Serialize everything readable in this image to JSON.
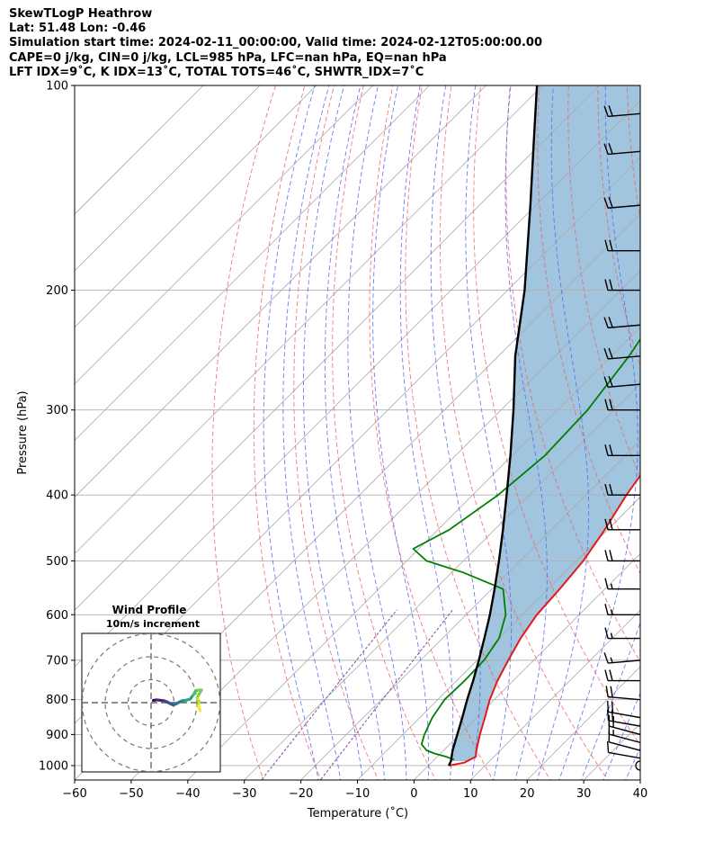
{
  "header": {
    "lines": [
      "SkewTLogP Heathrow",
      "Lat: 51.48   Lon: -0.46",
      "Simulation start time: 2024-02-11_00:00:00, Valid time: 2024-02-12T05:00:00.00",
      "CAPE=0 j/kg, CIN=0 j/kg, LCL=985 hPa, LFC=nan hPa, EQ=nan hPa",
      "LFT IDX=9˚C, K IDX=13˚C, TOTAL TOTS=46˚C, SHWTR_IDX=7˚C"
    ]
  },
  "chart_data": [
    {
      "type": "line",
      "chart_kind": "skew-T log-P",
      "xlabel": "Temperature (˚C)",
      "ylabel": "Pressure (hPa)",
      "xlim": [
        -60,
        40
      ],
      "ylim": [
        1050,
        100
      ],
      "y_scale": "log",
      "x_ticks": [
        -60,
        -50,
        -40,
        -30,
        -20,
        -10,
        0,
        10,
        20,
        30,
        40
      ],
      "y_ticks": [
        100,
        200,
        300,
        400,
        500,
        600,
        700,
        800,
        900,
        1000
      ],
      "grid": true,
      "skew_degrees": 45,
      "colors": {
        "temperature": "#e41a1c",
        "dewpoint": "#008000",
        "parcel": "#000000",
        "shading": "#a1c5df",
        "dry_adiabats": "#f06262",
        "moist_adiabats": "#5566ee",
        "mixing_ratio": "#8844aa",
        "isotherms": "#aaaaaa",
        "barbs": "#000000"
      },
      "series": [
        {
          "key": "temperature",
          "points": [
            [
              1000,
              3.6
            ],
            [
              990,
              5.8
            ],
            [
              970,
              6.8
            ],
            [
              950,
              5.8
            ],
            [
              900,
              3.6
            ],
            [
              850,
              1.5
            ],
            [
              800,
              -0.8
            ],
            [
              750,
              -2.8
            ],
            [
              700,
              -4.5
            ],
            [
              650,
              -6.2
            ],
            [
              600,
              -7.5
            ],
            [
              550,
              -8.0
            ],
            [
              500,
              -8.8
            ],
            [
              450,
              -10.5
            ],
            [
              400,
              -12.8
            ],
            [
              350,
              -14.8
            ],
            [
              320,
              -15.0
            ],
            [
              300,
              -14.2
            ],
            [
              270,
              -12.4
            ],
            [
              250,
              -10.6
            ],
            [
              230,
              -8.1
            ],
            [
              200,
              -6.3
            ],
            [
              180,
              -6.4
            ],
            [
              150,
              -6.8
            ],
            [
              130,
              -7.3
            ],
            [
              110,
              -8.0
            ],
            [
              100,
              -8.4
            ]
          ]
        },
        {
          "key": "dewpoint",
          "points": [
            [
              980,
              3.5
            ],
            [
              970,
              1.5
            ],
            [
              960,
              -1.0
            ],
            [
              950,
              -3.0
            ],
            [
              930,
              -5.0
            ],
            [
              900,
              -6.2
            ],
            [
              850,
              -7.8
            ],
            [
              800,
              -8.8
            ],
            [
              750,
              -8.6
            ],
            [
              700,
              -8.8
            ],
            [
              650,
              -10.0
            ],
            [
              600,
              -13.0
            ],
            [
              550,
              -18.0
            ],
            [
              520,
              -28.0
            ],
            [
              500,
              -36.5
            ],
            [
              480,
              -41.0
            ],
            [
              450,
              -38.0
            ],
            [
              400,
              -35.5
            ],
            [
              350,
              -34.2
            ],
            [
              300,
              -34.7
            ],
            [
              250,
              -36.9
            ],
            [
              200,
              -40.7
            ],
            [
              186,
              -43.7
            ],
            [
              150,
              -36.5
            ],
            [
              120,
              -30.5
            ],
            [
              100,
              -25.8
            ]
          ]
        },
        {
          "key": "parcel",
          "points": [
            [
              1000,
              3.6
            ],
            [
              985,
              3.2
            ],
            [
              950,
              1.6
            ],
            [
              900,
              -0.4
            ],
            [
              850,
              -2.5
            ],
            [
              800,
              -4.8
            ],
            [
              750,
              -7.1
            ],
            [
              700,
              -9.7
            ],
            [
              650,
              -12.6
            ],
            [
              600,
              -15.8
            ],
            [
              550,
              -19.5
            ],
            [
              500,
              -23.7
            ],
            [
              450,
              -28.5
            ],
            [
              400,
              -34.0
            ],
            [
              350,
              -40.3
            ],
            [
              300,
              -47.8
            ],
            [
              250,
              -57.0
            ],
            [
              200,
              -67.0
            ],
            [
              150,
              -81.0
            ],
            [
              125,
              -90.0
            ],
            [
              100,
              -101.0
            ]
          ]
        }
      ],
      "wind_barbs": [
        {
          "p": 1000,
          "dir": 270,
          "speed_kt": 2
        },
        {
          "p": 975,
          "dir": 280,
          "speed_kt": 10
        },
        {
          "p": 950,
          "dir": 285,
          "speed_kt": 12
        },
        {
          "p": 925,
          "dir": 285,
          "speed_kt": 15
        },
        {
          "p": 900,
          "dir": 285,
          "speed_kt": 18
        },
        {
          "p": 875,
          "dir": 280,
          "speed_kt": 20
        },
        {
          "p": 850,
          "dir": 280,
          "speed_kt": 20
        },
        {
          "p": 800,
          "dir": 275,
          "speed_kt": 20
        },
        {
          "p": 750,
          "dir": 270,
          "speed_kt": 18
        },
        {
          "p": 700,
          "dir": 265,
          "speed_kt": 15
        },
        {
          "p": 650,
          "dir": 270,
          "speed_kt": 15
        },
        {
          "p": 600,
          "dir": 270,
          "speed_kt": 15
        },
        {
          "p": 550,
          "dir": 270,
          "speed_kt": 15
        },
        {
          "p": 500,
          "dir": 270,
          "speed_kt": 18
        },
        {
          "p": 450,
          "dir": 270,
          "speed_kt": 18
        },
        {
          "p": 400,
          "dir": 270,
          "speed_kt": 18
        },
        {
          "p": 350,
          "dir": 270,
          "speed_kt": 18
        },
        {
          "p": 300,
          "dir": 270,
          "speed_kt": 18
        },
        {
          "p": 275,
          "dir": 265,
          "speed_kt": 18
        },
        {
          "p": 250,
          "dir": 265,
          "speed_kt": 20
        },
        {
          "p": 225,
          "dir": 265,
          "speed_kt": 20
        },
        {
          "p": 200,
          "dir": 270,
          "speed_kt": 20
        },
        {
          "p": 175,
          "dir": 270,
          "speed_kt": 20
        },
        {
          "p": 150,
          "dir": 265,
          "speed_kt": 20
        },
        {
          "p": 125,
          "dir": 265,
          "speed_kt": 20
        },
        {
          "p": 110,
          "dir": 265,
          "speed_kt": 20
        }
      ]
    },
    {
      "type": "line",
      "chart_kind": "hodograph",
      "title": "Wind Profile",
      "subtitle": "10m/s increment",
      "rings_ms": [
        10,
        20,
        30
      ],
      "colormap": "viridis",
      "points_uv": [
        [
          1.0,
          1.0
        ],
        [
          2.5,
          1.2
        ],
        [
          4.2,
          1.0
        ],
        [
          5.8,
          0.8
        ],
        [
          7.2,
          0.2
        ],
        [
          8.6,
          -0.6
        ],
        [
          9.8,
          -1.0
        ],
        [
          11.0,
          -0.5
        ],
        [
          12.2,
          0.2
        ],
        [
          13.5,
          0.8
        ],
        [
          15.0,
          1.0
        ],
        [
          17.0,
          1.5
        ],
        [
          18.5,
          3.5
        ],
        [
          19.5,
          5.2
        ],
        [
          20.5,
          5.5
        ],
        [
          22.0,
          5.5
        ],
        [
          20.0,
          2.0
        ],
        [
          21.0,
          0.5
        ],
        [
          20.5,
          -1.5
        ],
        [
          21.5,
          -3.5
        ]
      ]
    }
  ]
}
